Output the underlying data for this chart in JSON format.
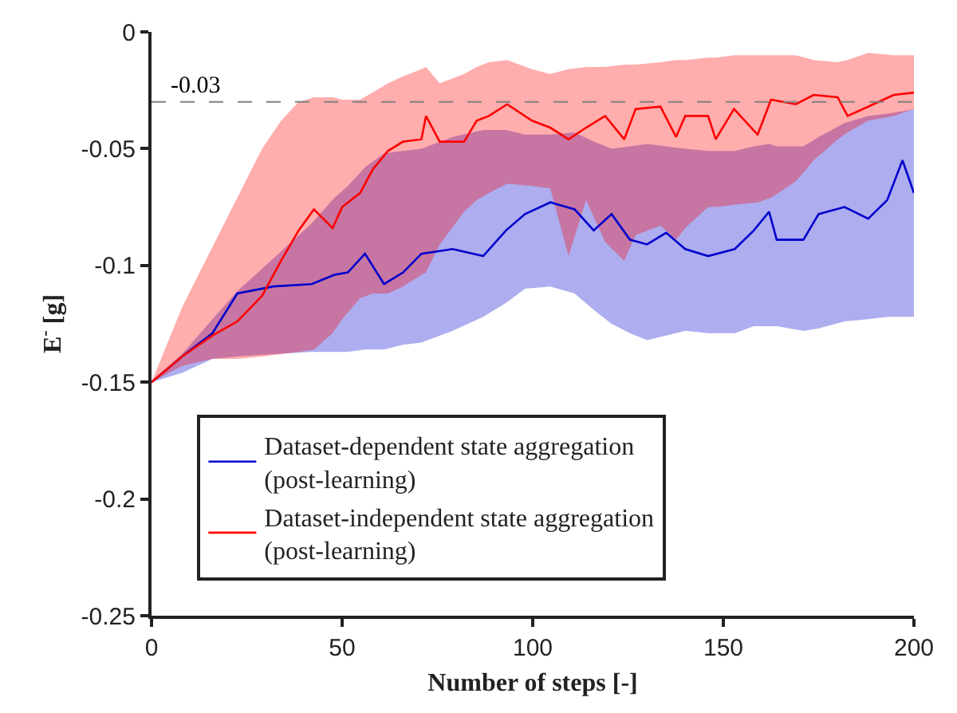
{
  "chart_data": {
    "type": "line",
    "xlabel": "Number of steps [-]",
    "ylabel": "E$^{-}$ [g]",
    "xlim": [
      0,
      200
    ],
    "xticks": [
      0,
      50,
      100,
      150,
      200
    ],
    "ylim": [
      -0.25,
      0
    ],
    "yticks": [
      -0.25,
      -0.2,
      -0.15,
      -0.1,
      -0.05,
      0
    ],
    "legend": "bottom",
    "marker": "none",
    "line_style": "solid",
    "ref_lines": [
      {
        "axis": "y",
        "value": -0.03,
        "label": "-0.03",
        "color": "#808080",
        "line_style": "dashed"
      }
    ],
    "series": [
      {
        "name": "Dataset-dependent state aggregation\n(post-learning)",
        "color": "#0000cc",
        "x": [
          0,
          8,
          16,
          22.5,
          32,
          42,
          48,
          51.5,
          56,
          61,
          66,
          70.8,
          79,
          87,
          93,
          98,
          104.6,
          111,
          116,
          120.7,
          125.5,
          130,
          135,
          140,
          146,
          153,
          158,
          162,
          164,
          171,
          175,
          181.8,
          188,
          193,
          197,
          200
        ],
        "values": [
          -0.15,
          -0.139,
          -0.129,
          -0.112,
          -0.109,
          -0.108,
          -0.104,
          -0.103,
          -0.095,
          -0.108,
          -0.103,
          -0.095,
          -0.093,
          -0.096,
          -0.085,
          -0.078,
          -0.073,
          -0.076,
          -0.085,
          -0.078,
          -0.089,
          -0.091,
          -0.086,
          -0.093,
          -0.096,
          -0.093,
          -0.085,
          -0.077,
          -0.089,
          -0.089,
          -0.078,
          -0.075,
          -0.08,
          -0.072,
          -0.055,
          -0.069
        ],
        "lower": [
          -0.15,
          -0.146,
          -0.14,
          -0.139,
          -0.138,
          -0.137,
          -0.137,
          -0.137,
          -0.136,
          -0.136,
          -0.134,
          -0.133,
          -0.128,
          -0.122,
          -0.116,
          -0.11,
          -0.109,
          -0.112,
          -0.119,
          -0.125,
          -0.129,
          -0.132,
          -0.13,
          -0.128,
          -0.129,
          -0.129,
          -0.126,
          -0.126,
          -0.126,
          -0.128,
          -0.127,
          -0.124,
          -0.123,
          -0.122,
          -0.122,
          -0.122
        ],
        "upper": [
          -0.15,
          -0.138,
          -0.123,
          -0.111,
          -0.097,
          -0.082,
          -0.071,
          -0.066,
          -0.058,
          -0.052,
          -0.051,
          -0.05,
          -0.045,
          -0.042,
          -0.042,
          -0.044,
          -0.044,
          -0.043,
          -0.047,
          -0.05,
          -0.049,
          -0.048,
          -0.049,
          -0.05,
          -0.051,
          -0.051,
          -0.049,
          -0.048,
          -0.049,
          -0.049,
          -0.045,
          -0.039,
          -0.036,
          -0.035,
          -0.034,
          -0.033
        ]
      },
      {
        "name": "Dataset-independent state aggregation\n(post-learning)",
        "color": "#ff0000",
        "x": [
          0,
          8,
          16,
          22.5,
          29,
          34,
          38.6,
          42.6,
          47.5,
          50,
          54.7,
          58,
          62,
          66,
          70.8,
          72,
          75.6,
          82,
          85.3,
          88.5,
          93.3,
          99.8,
          104.6,
          109.4,
          114,
          119,
          124,
          127,
          133.5,
          137.6,
          140,
          146,
          148,
          152.8,
          159,
          162.5,
          169,
          173.7,
          180,
          182.6,
          188,
          194.7,
          200
        ],
        "values": [
          -0.15,
          -0.139,
          -0.13,
          -0.124,
          -0.113,
          -0.098,
          -0.085,
          -0.076,
          -0.084,
          -0.075,
          -0.069,
          -0.059,
          -0.051,
          -0.047,
          -0.046,
          -0.036,
          -0.047,
          -0.047,
          -0.038,
          -0.036,
          -0.031,
          -0.038,
          -0.041,
          -0.046,
          -0.041,
          -0.036,
          -0.046,
          -0.033,
          -0.032,
          -0.045,
          -0.036,
          -0.036,
          -0.046,
          -0.033,
          -0.044,
          -0.029,
          -0.031,
          -0.027,
          -0.028,
          -0.036,
          -0.032,
          -0.027,
          -0.026
        ],
        "lower": [
          -0.15,
          -0.143,
          -0.14,
          -0.14,
          -0.139,
          -0.138,
          -0.137,
          -0.136,
          -0.129,
          -0.123,
          -0.114,
          -0.112,
          -0.112,
          -0.109,
          -0.104,
          -0.103,
          -0.091,
          -0.077,
          -0.072,
          -0.069,
          -0.065,
          -0.066,
          -0.067,
          -0.096,
          -0.072,
          -0.09,
          -0.098,
          -0.087,
          -0.083,
          -0.089,
          -0.084,
          -0.075,
          -0.075,
          -0.074,
          -0.073,
          -0.071,
          -0.064,
          -0.055,
          -0.046,
          -0.043,
          -0.038,
          -0.036,
          -0.033
        ],
        "upper": [
          -0.15,
          -0.118,
          -0.092,
          -0.071,
          -0.05,
          -0.038,
          -0.03,
          -0.028,
          -0.028,
          -0.029,
          -0.029,
          -0.026,
          -0.022,
          -0.019,
          -0.016,
          -0.015,
          -0.022,
          -0.018,
          -0.015,
          -0.013,
          -0.012,
          -0.016,
          -0.018,
          -0.016,
          -0.015,
          -0.015,
          -0.014,
          -0.014,
          -0.013,
          -0.012,
          -0.012,
          -0.011,
          -0.011,
          -0.01,
          -0.01,
          -0.01,
          -0.01,
          -0.012,
          -0.013,
          -0.012,
          -0.009,
          -0.01,
          -0.01
        ]
      }
    ]
  }
}
